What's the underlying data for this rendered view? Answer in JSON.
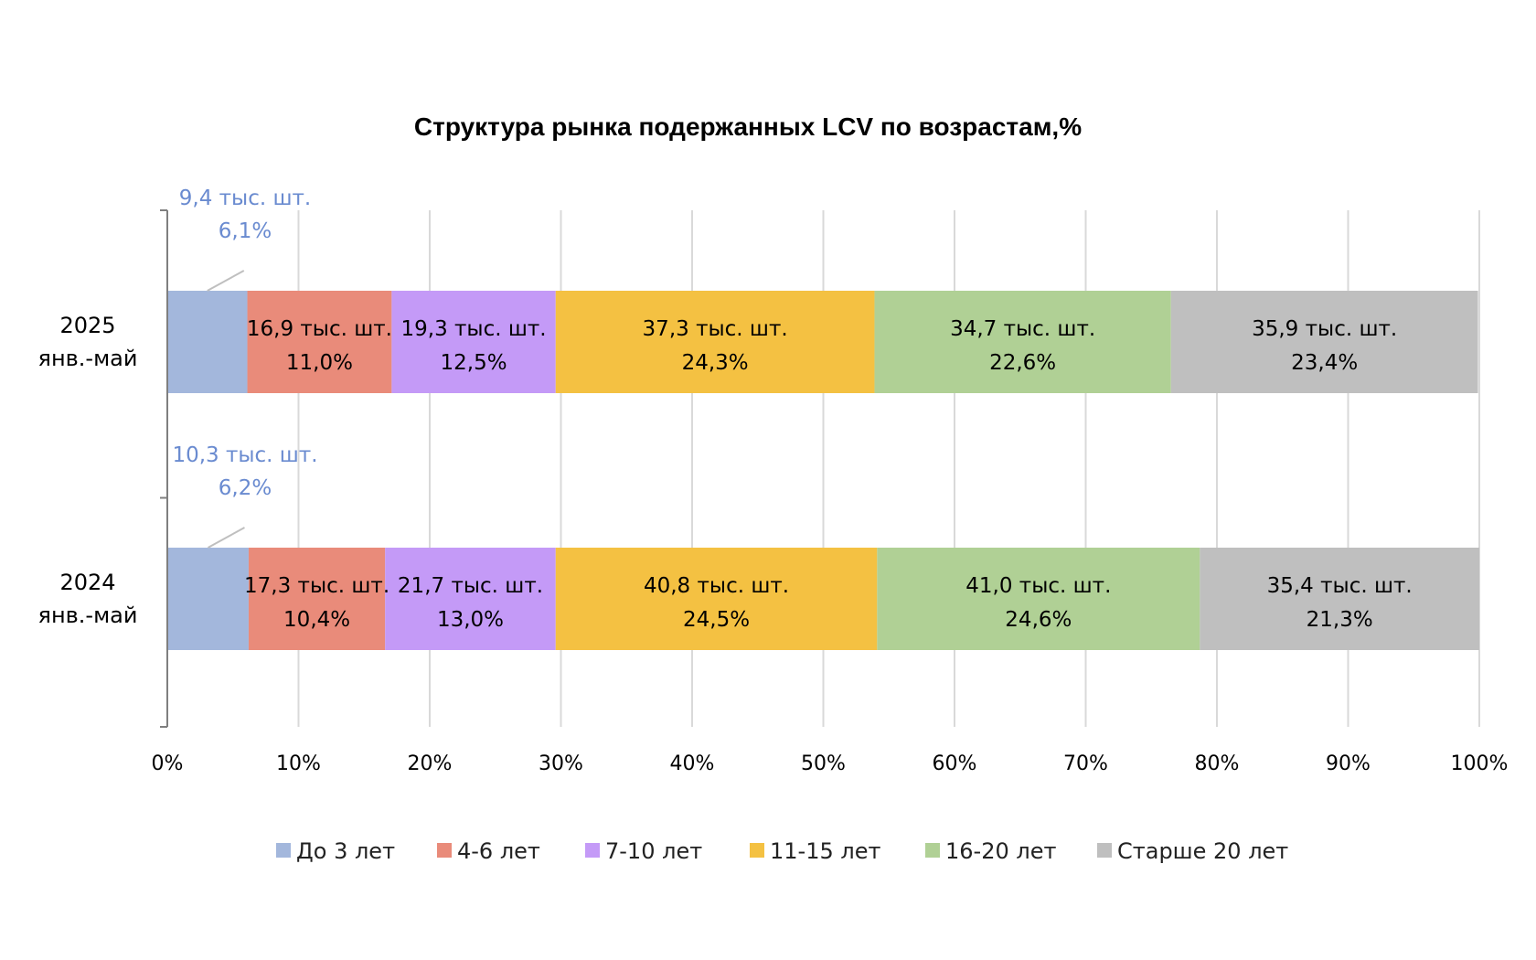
{
  "chart_data": {
    "type": "bar",
    "orientation": "horizontal",
    "stacked": "percent",
    "title": "Структура рынка подержанных LCV по возрастам,%",
    "categories": [
      "2025 янв.-май",
      "2024 янв.-май"
    ],
    "category_lines": [
      [
        "2025",
        "янв.-май"
      ],
      [
        "2024",
        "янв.-май"
      ]
    ],
    "xlim": [
      0,
      100
    ],
    "x_ticks": [
      "0%",
      "10%",
      "20%",
      "30%",
      "40%",
      "50%",
      "60%",
      "70%",
      "80%",
      "90%",
      "100%"
    ],
    "grid": true,
    "legend_position": "bottom",
    "series": [
      {
        "name": "До 3 лет",
        "color": "#a3b7dc",
        "values": [
          6.1,
          6.2
        ],
        "labels": [
          [
            "9,4 тыс. шт.",
            "6,1%"
          ],
          [
            "10,3 тыс. шт.",
            "6,2%"
          ]
        ],
        "label_placement": "outside-callout"
      },
      {
        "name": "4-6 лет",
        "color": "#e98b7a",
        "values": [
          11.0,
          10.4
        ],
        "labels": [
          [
            "16,9 тыс. шт.",
            "11,0%"
          ],
          [
            "17,3 тыс. шт.",
            "10,4%"
          ]
        ]
      },
      {
        "name": "7-10 лет",
        "color": "#c49af7",
        "values": [
          12.5,
          13.0
        ],
        "labels": [
          [
            "19,3 тыс. шт.",
            "12,5%"
          ],
          [
            "21,7 тыс. шт.",
            "13,0%"
          ]
        ]
      },
      {
        "name": "11-15 лет",
        "color": "#f4c142",
        "values": [
          24.3,
          24.5
        ],
        "labels": [
          [
            "37,3 тыс. шт.",
            "24,3%"
          ],
          [
            "40,8 тыс. шт.",
            "24,5%"
          ]
        ]
      },
      {
        "name": "16-20 лет",
        "color": "#b0d095",
        "values": [
          22.6,
          24.6
        ],
        "labels": [
          [
            "34,7 тыс. шт.",
            "22,6%"
          ],
          [
            "41,0 тыс. шт.",
            "24,6%"
          ]
        ]
      },
      {
        "name": "Старше 20 лет",
        "color": "#bfbfbf",
        "values": [
          23.4,
          21.3
        ],
        "labels": [
          [
            "35,9 тыс. шт.",
            "23,4%"
          ],
          [
            "35,4 тыс. шт.",
            "21,3%"
          ]
        ]
      }
    ]
  }
}
